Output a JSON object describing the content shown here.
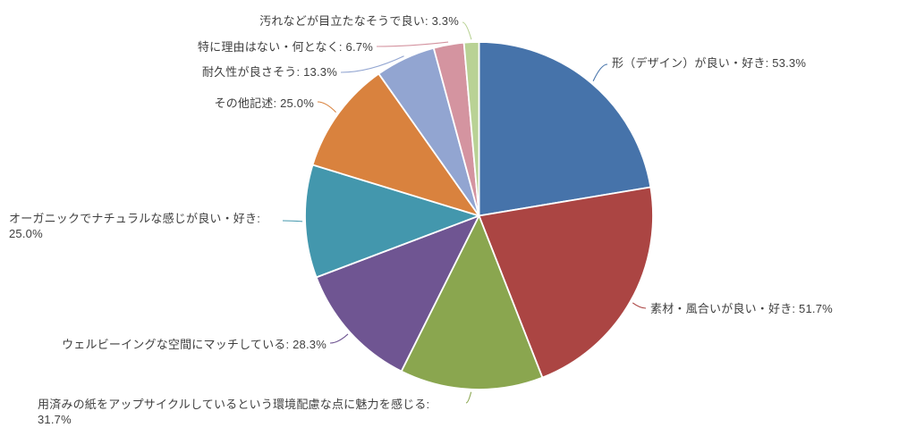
{
  "canvas": {
    "background": "#ffffff",
    "text_color": "#3f3f3f"
  },
  "chart_data": {
    "type": "pie",
    "title": "",
    "legend": "none",
    "start_angle_deg": 0,
    "direction": "clockwise",
    "label_format": "{label}: {value}%",
    "values_total": 238.3,
    "slices": [
      {
        "label": "形（デザイン）が良い・好き",
        "value": 53.3,
        "display": "形（デザイン）が良い・好き: 53.3%",
        "color": "#4673aa"
      },
      {
        "label": "素材・風合いが良い・好き",
        "value": 51.7,
        "display": "素材・風合いが良い・好き: 51.7%",
        "color": "#ab4543"
      },
      {
        "label": "用済みの紙をアップサイクルしているという環境配慮な点に魅力を感じる",
        "value": 31.7,
        "display": "用済みの紙をアップサイクルしているという環境配慮な点に魅力を感じる: 31.7%",
        "color": "#8aa64f"
      },
      {
        "label": "ウェルビーイングな空間にマッチしている",
        "value": 28.3,
        "display": "ウェルビーイングな空間にマッチしている: 28.3%",
        "color": "#6f5592"
      },
      {
        "label": "オーガニックでナチュラルな感じが良い・好き",
        "value": 25.0,
        "display": "オーガニックでナチュラルな感じが良い・好き: 25.0%",
        "color": "#4397ad"
      },
      {
        "label": "その他記述",
        "value": 25.0,
        "display": "その他記述: 25.0%",
        "color": "#d9823e"
      },
      {
        "label": "耐久性が良さそう",
        "value": 13.3,
        "display": "耐久性が良さそう: 13.3%",
        "color": "#92a5d1"
      },
      {
        "label": "特に理由はない・何となく",
        "value": 6.7,
        "display": "特に理由はない・何となく: 6.7%",
        "color": "#d494a0"
      },
      {
        "label": "汚れなどが目立たなそうで良い",
        "value": 3.3,
        "display": "汚れなどが目立たなそうで良い: 3.3%",
        "color": "#b9d295"
      }
    ]
  }
}
